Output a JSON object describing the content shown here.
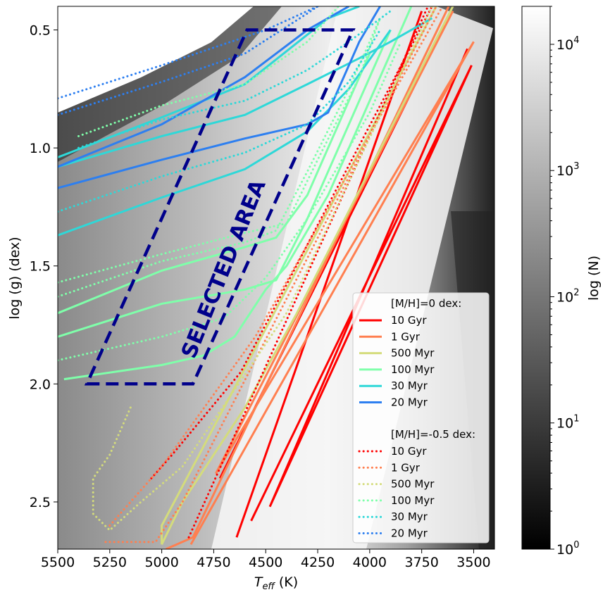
{
  "chart_data": {
    "type": "line",
    "xlabel": "T",
    "xlabel_sub": "eff",
    "xlabel_unit": " (K)",
    "ylabel": "log (g)  (dex)",
    "xlim": [
      5500,
      3400
    ],
    "ylim": [
      2.7,
      0.4
    ],
    "x_ticks": [
      5500,
      5250,
      5000,
      4750,
      4500,
      4250,
      4000,
      3750,
      3500
    ],
    "x_tick_labels": [
      "5500",
      "5250",
      "5000",
      "4750",
      "4500",
      "4250",
      "4000",
      "3750",
      "3500"
    ],
    "y_ticks": [
      0.5,
      1.0,
      1.5,
      2.0,
      2.5
    ],
    "y_tick_labels": [
      "0.5",
      "1.0",
      "1.5",
      "2.0",
      "2.5"
    ],
    "colorbar": {
      "label": "log (N)",
      "scale": "log",
      "range": [
        1,
        20000
      ],
      "ticks": [
        1,
        10,
        100,
        1000,
        10000
      ],
      "tick_bases": [
        "10",
        "10",
        "10",
        "10",
        "10"
      ],
      "tick_exps": [
        "0",
        "1",
        "2",
        "3",
        "4"
      ]
    },
    "selected_area": {
      "label": "SELECTED AREA",
      "color": "#00008b",
      "polygon": [
        [
          5360,
          2.0
        ],
        [
          4850,
          2.0
        ],
        [
          4080,
          0.5
        ],
        [
          4590,
          0.5
        ]
      ]
    },
    "legend": {
      "location": "lower right",
      "group_titles": [
        "[M/H]=0 dex:",
        "[M/H]=-0.5 dex:"
      ]
    },
    "series": [
      {
        "name": "10 Gyr",
        "group": 0,
        "style": "solid",
        "color": "#ff0000",
        "segments": [
          [
            [
              4640,
              2.65
            ],
            [
              3750,
              0.42
            ]
          ],
          [
            [
              4570,
              2.58
            ],
            [
              3510,
              0.65
            ],
            [
              4480,
              2.52
            ],
            [
              3530,
              0.58
            ]
          ],
          [
            [
              4720,
              2.4
            ],
            [
              3640,
              0.48
            ]
          ]
        ]
      },
      {
        "name": "1 Gyr",
        "group": 0,
        "style": "solid",
        "color": "#ff7f50",
        "segments": [
          [
            [
              4980,
              2.7
            ],
            [
              4850,
              2.65
            ],
            [
              3620,
              0.4
            ]
          ],
          [
            [
              4860,
              2.68
            ],
            [
              3500,
              0.55
            ],
            [
              4740,
              2.38
            ],
            [
              3600,
              0.42
            ]
          ]
        ]
      },
      {
        "name": "500 Myr",
        "group": 0,
        "style": "solid",
        "color": "#d4dc7c",
        "segments": [
          [
            [
              5000,
              2.68
            ],
            [
              5000,
              2.6
            ],
            [
              3680,
              0.4
            ]
          ],
          [
            [
              5000,
              2.68
            ],
            [
              4900,
              2.5
            ],
            [
              4600,
              2.1
            ],
            [
              4350,
              1.7
            ],
            [
              3600,
              0.4
            ]
          ]
        ]
      },
      {
        "name": "100 Myr",
        "group": 0,
        "style": "solid",
        "color": "#7fffaa",
        "segments": [
          [
            [
              5470,
              1.98
            ],
            [
              5000,
              1.92
            ],
            [
              4800,
              1.88
            ],
            [
              4650,
              1.8
            ],
            [
              4500,
              1.6
            ],
            [
              4400,
              1.5
            ],
            [
              4200,
              1.2
            ],
            [
              3900,
              0.6
            ],
            [
              3800,
              0.4
            ]
          ],
          [
            [
              5500,
              1.8
            ],
            [
              5000,
              1.66
            ],
            [
              4600,
              1.6
            ],
            [
              4450,
              1.56
            ],
            [
              4300,
              1.3
            ],
            [
              4100,
              0.9
            ],
            [
              3900,
              0.5
            ]
          ],
          [
            [
              5500,
              1.7
            ],
            [
              5000,
              1.52
            ],
            [
              4600,
              1.42
            ],
            [
              4450,
              1.38
            ],
            [
              4300,
              1.2
            ],
            [
              4100,
              0.8
            ],
            [
              4000,
              0.6
            ]
          ]
        ]
      },
      {
        "name": "30 Myr",
        "group": 0,
        "style": "solid",
        "color": "#2ed8d8",
        "segments": [
          [
            [
              5500,
              1.37
            ],
            [
              5000,
              1.21
            ],
            [
              4600,
              1.09
            ],
            [
              4300,
              0.93
            ],
            [
              4100,
              0.75
            ],
            [
              3900,
              0.5
            ]
          ],
          [
            [
              5500,
              1.08
            ],
            [
              5000,
              0.95
            ],
            [
              4600,
              0.86
            ],
            [
              4300,
              0.73
            ],
            [
              4050,
              0.62
            ],
            [
              3900,
              0.55
            ],
            [
              3700,
              0.45
            ]
          ],
          [
            [
              5500,
              1.04
            ],
            [
              5000,
              0.87
            ],
            [
              4600,
              0.73
            ],
            [
              4200,
              0.45
            ],
            [
              4050,
              0.4
            ]
          ]
        ]
      },
      {
        "name": "20 Myr",
        "group": 0,
        "style": "solid",
        "color": "#2d7ff0",
        "segments": [
          [
            [
              5500,
              1.17
            ],
            [
              5000,
              1.05
            ],
            [
              4600,
              0.96
            ],
            [
              4300,
              0.9
            ],
            [
              4200,
              0.85
            ],
            [
              4050,
              0.55
            ],
            [
              3950,
              0.4
            ]
          ],
          [
            [
              5500,
              1.08
            ],
            [
              5000,
              0.9
            ],
            [
              4600,
              0.7
            ],
            [
              4300,
              0.5
            ],
            [
              4100,
              0.4
            ]
          ]
        ]
      },
      {
        "name": "10 Gyr",
        "group": 1,
        "style": "dotted",
        "color": "#ff0000",
        "segments": [
          [
            [
              4870,
              2.65
            ],
            [
              3720,
              0.4
            ]
          ],
          [
            [
              5050,
              2.4
            ],
            [
              4950,
              2.3
            ],
            [
              4620,
              1.95
            ],
            [
              3700,
              0.4
            ]
          ]
        ]
      },
      {
        "name": "1 Gyr",
        "group": 1,
        "style": "dotted",
        "color": "#ff7f50",
        "segments": [
          [
            [
              5270,
              2.67
            ],
            [
              5030,
              2.67
            ],
            [
              4900,
              2.5
            ],
            [
              3680,
              0.4
            ]
          ],
          [
            [
              5250,
              2.6
            ],
            [
              5150,
              2.5
            ],
            [
              5000,
              2.35
            ],
            [
              4550,
              1.8
            ],
            [
              3650,
              0.4
            ]
          ]
        ]
      },
      {
        "name": "500 Myr",
        "group": 1,
        "style": "dotted",
        "color": "#d4dc7c",
        "segments": [
          [
            [
              5150,
              2.1
            ],
            [
              5250,
              2.3
            ],
            [
              5330,
              2.4
            ],
            [
              5330,
              2.55
            ],
            [
              5250,
              2.62
            ],
            [
              5100,
              2.5
            ],
            [
              4900,
              2.35
            ],
            [
              4400,
              1.7
            ],
            [
              3700,
              0.4
            ]
          ]
        ]
      },
      {
        "name": "100 Myr",
        "group": 1,
        "style": "dotted",
        "color": "#7fffaa",
        "segments": [
          [
            [
              5500,
              1.9
            ],
            [
              5000,
              1.8
            ],
            [
              4700,
              1.72
            ],
            [
              4500,
              1.55
            ],
            [
              4300,
              1.3
            ],
            [
              4000,
              0.85
            ],
            [
              3850,
              0.55
            ]
          ],
          [
            [
              5500,
              1.63
            ],
            [
              5000,
              1.48
            ],
            [
              4600,
              1.4
            ],
            [
              4450,
              1.35
            ],
            [
              4300,
              1.1
            ],
            [
              4100,
              0.75
            ],
            [
              3950,
              0.45
            ]
          ],
          [
            [
              5500,
              1.57
            ],
            [
              5000,
              1.45
            ],
            [
              4600,
              1.36
            ],
            [
              4400,
              1.32
            ],
            [
              4250,
              1.05
            ],
            [
              4050,
              0.7
            ],
            [
              3950,
              0.45
            ]
          ],
          [
            [
              5400,
              0.95
            ],
            [
              5000,
              0.82
            ],
            [
              4600,
              0.73
            ],
            [
              4300,
              0.55
            ],
            [
              4150,
              0.4
            ]
          ]
        ]
      },
      {
        "name": "30 Myr",
        "group": 1,
        "style": "dotted",
        "color": "#2ed8d8",
        "segments": [
          [
            [
              5500,
              1.27
            ],
            [
              5000,
              1.12
            ],
            [
              4600,
              1.02
            ],
            [
              4300,
              0.9
            ],
            [
              4100,
              0.72
            ],
            [
              3950,
              0.5
            ]
          ],
          [
            [
              5400,
              1.0
            ],
            [
              5000,
              0.88
            ],
            [
              4600,
              0.8
            ],
            [
              4300,
              0.67
            ],
            [
              4100,
              0.55
            ],
            [
              3900,
              0.42
            ]
          ]
        ]
      },
      {
        "name": "20 Myr",
        "group": 1,
        "style": "dotted",
        "color": "#2d7ff0",
        "segments": [
          [
            [
              5500,
              0.86
            ],
            [
              5000,
              0.72
            ],
            [
              4600,
              0.6
            ],
            [
              4300,
              0.43
            ],
            [
              4250,
              0.4
            ]
          ],
          [
            [
              5500,
              0.79
            ],
            [
              5000,
              0.65
            ],
            [
              4500,
              0.5
            ],
            [
              4250,
              0.4
            ]
          ]
        ]
      }
    ]
  }
}
